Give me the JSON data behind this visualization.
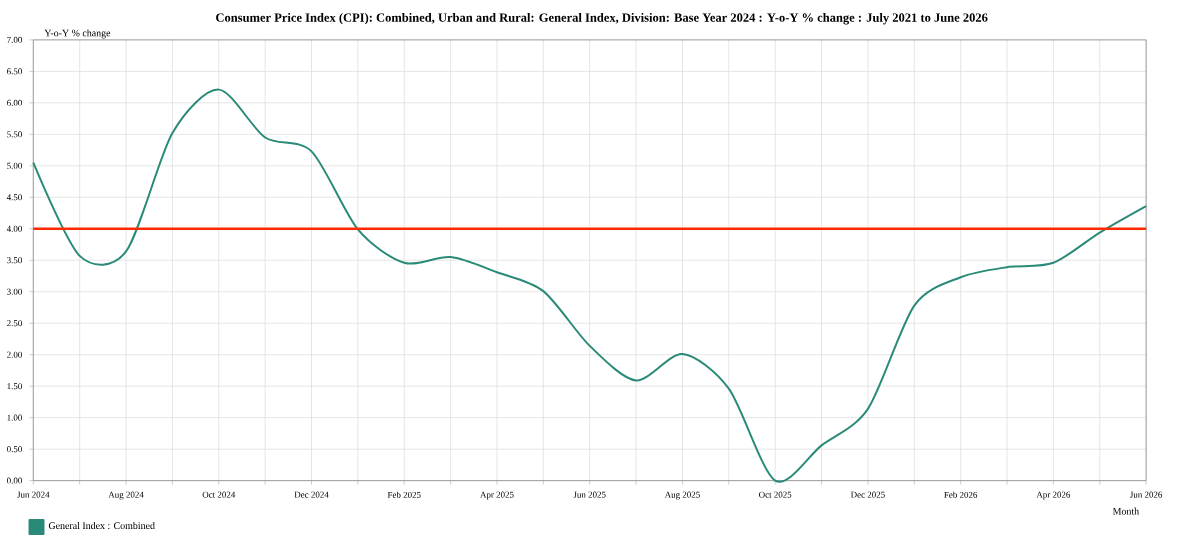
{
  "chart_data": {
    "type": "line",
    "title": "Consumer Price Index (CPI): Combined, Urban and Rural: General Index, Division: Base Year 2024 : Y-o-Y % change : July 2021 to June 2026",
    "xlabel": "Month",
    "ylabel": "Y-o-Y % change",
    "categories": [
      "Jun 2024",
      null,
      "Aug 2024",
      null,
      "Oct 2024",
      null,
      "Dec 2024",
      null,
      "Feb 2025",
      null,
      "Apr 2025",
      null,
      "Jun 2025",
      null,
      "Aug 2025",
      null,
      "Oct 2025",
      null,
      "Dec 2025",
      null,
      "Feb 2026",
      null,
      "Apr 2026",
      null,
      "Jun 2026"
    ],
    "series": [
      {
        "name": "General Index : Combined",
        "color": "#2a8a78",
        "values": [
          5.05,
          3.57,
          3.64,
          5.52,
          6.21,
          5.45,
          5.23,
          3.99,
          3.46,
          3.55,
          3.31,
          3.01,
          2.14,
          1.59,
          2.01,
          1.46,
          0.0,
          0.56,
          1.14,
          2.78,
          3.23,
          3.39,
          3.46,
          3.94,
          4.36
        ]
      }
    ],
    "ylim": [
      0,
      7
    ],
    "yticks": [
      {
        "value": 0,
        "label": "0.00"
      },
      {
        "value": 0.5,
        "label": "0.50"
      },
      {
        "value": 1,
        "label": "1.00"
      },
      {
        "value": 1.5,
        "label": "1.50"
      },
      {
        "value": 2,
        "label": "2.00"
      },
      {
        "value": 2.5,
        "label": "2.50"
      },
      {
        "value": 3,
        "label": "3.00"
      },
      {
        "value": 3.5,
        "label": "3.50"
      },
      {
        "value": 4,
        "label": "4.00"
      },
      {
        "value": 4.5,
        "label": "4.50"
      },
      {
        "value": 5,
        "label": "5.00"
      },
      {
        "value": 5.5,
        "label": "5.50"
      },
      {
        "value": 6,
        "label": "6.00"
      },
      {
        "value": 6.5,
        "label": "6.50"
      },
      {
        "value": 7,
        "label": "7.00"
      }
    ],
    "ref_lines": [
      {
        "axis": "y",
        "value": 4,
        "color": "#ff2a00"
      }
    ],
    "grid": true,
    "legend": "bottom left",
    "marker": "none",
    "line_style": "solid"
  }
}
